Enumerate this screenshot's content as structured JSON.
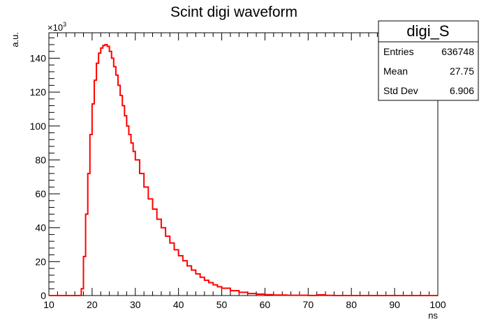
{
  "chart_data": {
    "type": "line",
    "title": "Scint digi waveform",
    "xlabel": "ns",
    "ylabel": "a.u.",
    "y_multiplier_label": "×10",
    "y_multiplier_exponent": "3",
    "xlim": [
      10,
      100
    ],
    "ylim": [
      0,
      155
    ],
    "x_ticks": [
      10,
      20,
      30,
      40,
      50,
      60,
      70,
      80,
      90,
      100
    ],
    "y_ticks": [
      0,
      20,
      40,
      60,
      80,
      100,
      120,
      140
    ],
    "grid": false,
    "line_color": "#ff0000",
    "series": [
      {
        "x": [
          10,
          17,
          17.5,
          18,
          18.5,
          19,
          19.5,
          20,
          20.5,
          21,
          21.5,
          22,
          22.5,
          23,
          23.5,
          24,
          24.5,
          25,
          25.5,
          26,
          26.5,
          27,
          27.5,
          28,
          28.5,
          29,
          29.5,
          30,
          31,
          32,
          33,
          34,
          35,
          36,
          37,
          38,
          39,
          40,
          41,
          42,
          43,
          44,
          45,
          46,
          47,
          48,
          49,
          50,
          52,
          54,
          56,
          58,
          60,
          62,
          65,
          70,
          72,
          74,
          76,
          80,
          90,
          100
        ],
        "y": [
          0,
          0,
          4,
          23,
          48,
          72,
          95,
          113,
          127,
          137,
          143,
          146,
          147.5,
          148,
          147,
          144,
          140,
          135,
          130,
          124,
          118,
          112,
          106,
          100,
          95,
          90,
          85,
          80,
          72,
          64,
          57,
          51,
          45,
          40,
          35,
          31,
          27,
          23.5,
          20.5,
          17.5,
          15,
          12.8,
          10.8,
          9,
          7.6,
          6.3,
          5.2,
          4.3,
          2.9,
          1.9,
          1.2,
          0.8,
          0.5,
          0.3,
          0.15,
          0.05,
          0.4,
          0.1,
          0,
          0,
          0,
          0
        ]
      }
    ],
    "stats": {
      "name": "digi_S",
      "rows": [
        {
          "label": "Entries",
          "value": "636748"
        },
        {
          "label": "Mean",
          "value": "27.75"
        },
        {
          "label": "Std Dev",
          "value": "6.906"
        }
      ]
    }
  }
}
